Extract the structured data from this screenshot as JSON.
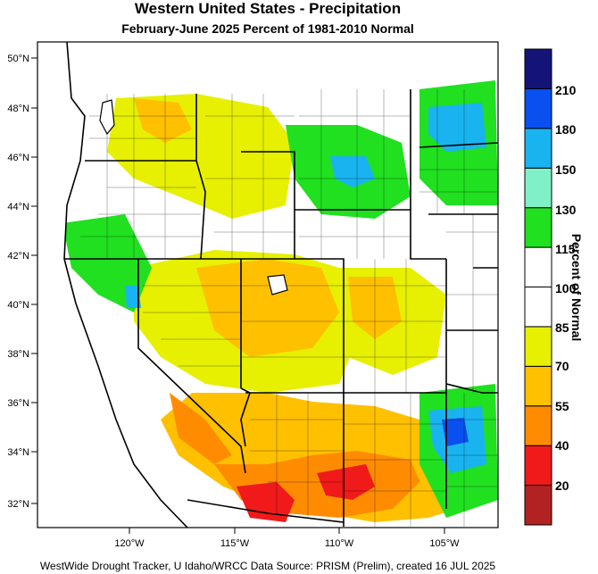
{
  "title": "Western United States - Precipitation",
  "subtitle": "February-June 2025  Percent of 1981-2010 Normal",
  "lat_labels": [
    "50°N",
    "48°N",
    "46°N",
    "44°N",
    "42°N",
    "40°N",
    "38°N",
    "36°N",
    "34°N",
    "32°N"
  ],
  "lon_labels": [
    "120°W",
    "115°W",
    "110°W",
    "105°W"
  ],
  "legend": {
    "title": "Percent of Normal",
    "ticks": [
      "20",
      "40",
      "55",
      "70",
      "85",
      "100",
      "115",
      "130",
      "150",
      "180",
      "210"
    ],
    "colors": [
      "#b22222",
      "#f01a1a",
      "#ff8c00",
      "#ffc000",
      "#e6f000",
      "#ffffff",
      "#ffffff",
      "#20e020",
      "#80f0c8",
      "#19b4f0",
      "#0a50f0",
      "#141478"
    ]
  },
  "footer": "WestWide Drought Tracker, U Idaho/WRCC Data Source: PRISM (Prelim), created 16 JUL 2025"
}
